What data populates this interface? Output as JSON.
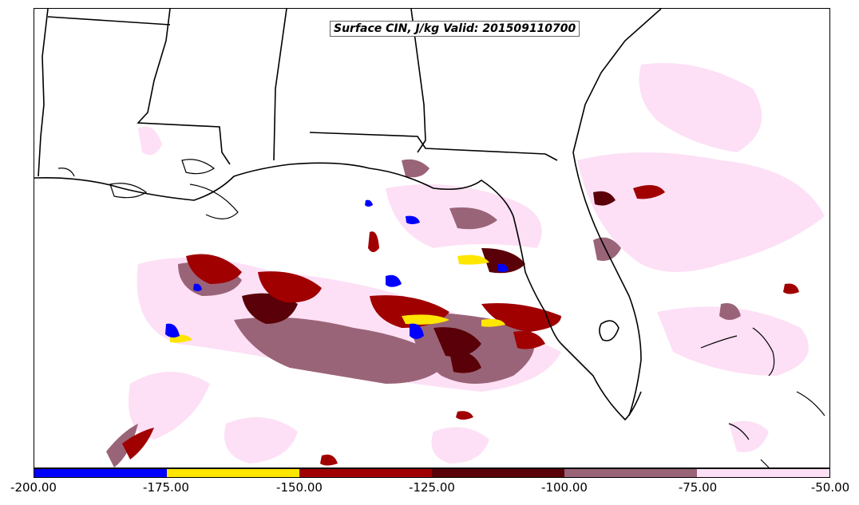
{
  "title": "Surface CIN, J/kg Valid: 201509110700",
  "colorbar": {
    "colors": [
      "#0000ff",
      "#ffe600",
      "#a00000",
      "#5a0008",
      "#9a6478",
      "#fde0f5"
    ],
    "labels": [
      "-200.00",
      "-175.00",
      "-150.00",
      "-125.00",
      "-100.00",
      "-75.00",
      "-50.00"
    ]
  },
  "legend_colors": {
    "state_border": "#000000",
    "coastline": "#000000",
    "background": "#ffffff"
  }
}
